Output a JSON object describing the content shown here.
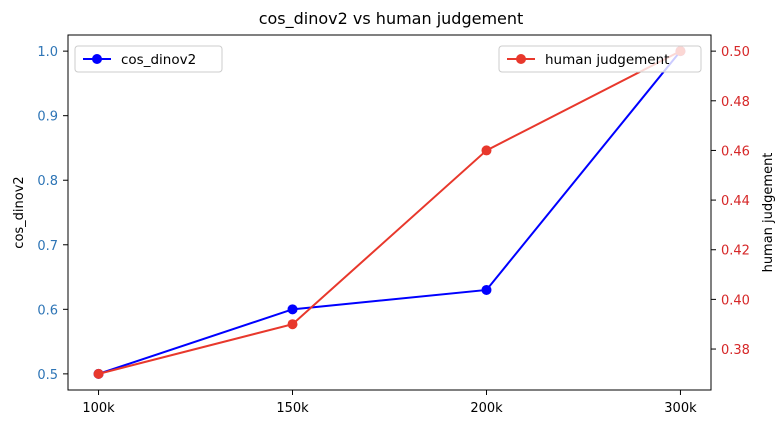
{
  "chart_data": {
    "type": "line",
    "title": "cos_dinov2 vs human judgement",
    "categories": [
      "100k",
      "150k",
      "200k",
      "300k"
    ],
    "series": [
      {
        "name": "cos_dinov2",
        "axis": "left",
        "color": "#0000ff",
        "values": [
          0.5,
          0.6,
          0.63,
          1.0
        ]
      },
      {
        "name": "human judgement",
        "axis": "right",
        "color": "#e8382c",
        "values": [
          0.37,
          0.39,
          0.46,
          0.5
        ]
      }
    ],
    "left_axis": {
      "label": "cos_dinov2",
      "ticks": [
        0.5,
        0.6,
        0.7,
        0.8,
        0.9,
        1.0
      ],
      "tick_labels": [
        "0.5",
        "0.6",
        "0.7",
        "0.8",
        "0.9",
        "1.0"
      ],
      "tick_color": "#2e75b6",
      "range": [
        0.475,
        1.025
      ]
    },
    "right_axis": {
      "label": "human judgement",
      "ticks": [
        0.38,
        0.4,
        0.42,
        0.44,
        0.46,
        0.48,
        0.5
      ],
      "tick_labels": [
        "0.38",
        "0.40",
        "0.42",
        "0.44",
        "0.46",
        "0.48",
        "0.50"
      ],
      "tick_color": "#d62728",
      "range": [
        0.3635,
        0.5065
      ]
    },
    "grid": false,
    "legends": [
      {
        "series": "cos_dinov2",
        "placement": "upper-left"
      },
      {
        "series": "human judgement",
        "placement": "upper-right"
      }
    ]
  }
}
